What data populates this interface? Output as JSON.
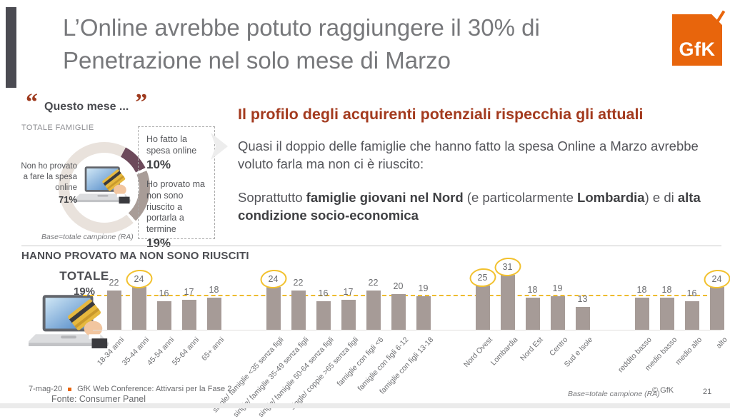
{
  "header": {
    "title": "L’Online avrebbe potuto raggiungere il 30% di Penetrazione nel solo mese di Marzo",
    "logo_text": "GfK"
  },
  "donut_section": {
    "quote": "Questo mese ...",
    "audience": "TOTALE FAMIGLIE",
    "left_label": "Non ho provato a fare la spesa online",
    "left_value": "71%",
    "box": {
      "item1_label": "Ho fatto la spesa online",
      "item1_value": "10%",
      "item2_label": "Ho provato ma non sono riuscito a portarla a termine",
      "item2_value": "19%"
    },
    "base_note": "Base=totale campione (RA)"
  },
  "insight": {
    "heading": "Il profilo degli acquirenti potenziali rispecchia gli attuali",
    "para1": "Quasi il doppio delle famiglie che hanno fatto la spesa Online a Marzo avrebbe voluto farla ma non ci è riuscito:",
    "para2": {
      "lead": "Soprattutto ",
      "bold1": "famiglie giovani nel Nord",
      "mid1": " (e particolarmente ",
      "bold2": "Lombardia",
      "mid2": ") e di ",
      "bold3": "alta condizione socio-economica"
    }
  },
  "bar_section": {
    "heading": "HANNO PROVATO MA NON SONO RIUSCITI",
    "total_label": "TOTALE",
    "total_value": "19%",
    "base_note": "Base=totale campione (RA)"
  },
  "footer": {
    "date": "7-mag-20",
    "event": "GfK Web Conference: Attivarsi per la Fase 2",
    "source": "Fonte: Consumer Panel",
    "copyright": "© GfK",
    "page": "21"
  },
  "colors": {
    "accent_orange": "#E8650C",
    "rust_red": "#A33A1E",
    "dark_gray": "#4B4B52",
    "bar_fill": "#A69B97",
    "highlight_yellow": "#F2C12E",
    "ref_line_yellow": "#EEBB2E",
    "donut_plum": "#6D4A5B",
    "donut_taupe": "#A89C97",
    "donut_light": "#E9E2DC"
  },
  "chart_data": [
    {
      "type": "pie",
      "donut": true,
      "title": "Questo mese ... TOTALE FAMIGLIE",
      "labels": [
        "Ho fatto la spesa online",
        "Ho provato ma non sono riuscito a portarla a termine",
        "Non ho provato a fare la spesa online"
      ],
      "values": [
        10,
        19,
        71
      ],
      "unit": "%",
      "colors": [
        "#6D4A5B",
        "#A89C97",
        "#E9E2DC"
      ],
      "note": "Base=totale campione (RA)"
    },
    {
      "type": "bar",
      "title": "HANNO PROVATO MA NON SONO RIUSCITI",
      "unit": "%",
      "ylim": [
        0,
        35
      ],
      "reference_line": {
        "label": "TOTALE",
        "value": 19
      },
      "bar_color": "#A69B97",
      "groups": [
        {
          "name": "eta",
          "categories": [
            "18-34 anni",
            "35-44 anni",
            "45-54 anni",
            "55-64 anni",
            "65+ anni"
          ],
          "values": [
            22,
            24,
            16,
            17,
            18
          ],
          "circled": [
            false,
            true,
            false,
            false,
            false
          ]
        },
        {
          "name": "famiglia",
          "categories": [
            "single/ famiglie <35 senza figli",
            "single/ famiglie 35-49 senza figli",
            "single/ famiglie 50-64 senza figli",
            "single/ coppie >65 senza figli",
            "famiglie con figli <6",
            "famiglie con figli 6-12",
            "famiglie con figli 13-18"
          ],
          "values": [
            24,
            22,
            16,
            17,
            22,
            20,
            19
          ],
          "circled": [
            true,
            false,
            false,
            false,
            false,
            false,
            false
          ]
        },
        {
          "name": "area",
          "categories": [
            "Nord Ovest",
            "Lombardia",
            "Nord Est",
            "Centro",
            "Sud e Isole"
          ],
          "values": [
            25,
            31,
            18,
            19,
            13
          ],
          "circled": [
            true,
            true,
            false,
            false,
            false
          ]
        },
        {
          "name": "reddito",
          "categories": [
            "reddito basso",
            "medio basso",
            "medio alto",
            "alto"
          ],
          "values": [
            18,
            18,
            16,
            24
          ],
          "circled": [
            false,
            false,
            false,
            true
          ]
        }
      ]
    }
  ]
}
